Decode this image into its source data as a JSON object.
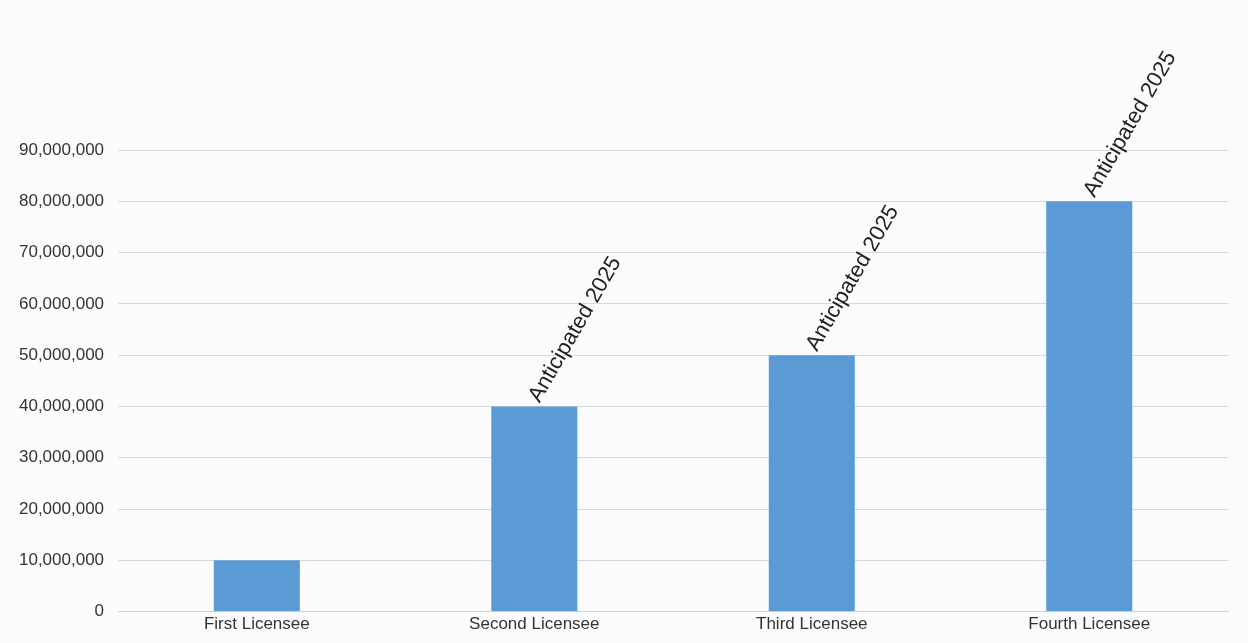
{
  "chart_data": {
    "type": "bar",
    "categories": [
      "First Licensee",
      "Second Licensee",
      "Third Licensee",
      "Fourth Licensee"
    ],
    "values": [
      10000000,
      40000000,
      50000000,
      80000000
    ],
    "color": "#5b9bd5",
    "ylim": [
      0,
      90000000
    ],
    "yticks": [
      {
        "value": 0,
        "label": "0"
      },
      {
        "value": 10000000,
        "label": "10,000,000"
      },
      {
        "value": 20000000,
        "label": "20,000,000"
      },
      {
        "value": 30000000,
        "label": "30,000,000"
      },
      {
        "value": 40000000,
        "label": "40,000,000"
      },
      {
        "value": 50000000,
        "label": "50,000,000"
      },
      {
        "value": 60000000,
        "label": "60,000,000"
      },
      {
        "value": 70000000,
        "label": "70,000,000"
      },
      {
        "value": 80000000,
        "label": "80,000,000"
      },
      {
        "value": 90000000,
        "label": "90,000,000"
      }
    ],
    "grid": "y",
    "annotations": [
      {
        "text": "Anticipated 2025",
        "x": "Second Licensee",
        "y": 40000000
      },
      {
        "text": "Anticipated 2025",
        "x": "Third Licensee",
        "y": 50000000
      },
      {
        "text": "Anticipated 2025",
        "x": "Fourth Licensee",
        "y": 80000000
      }
    ]
  }
}
